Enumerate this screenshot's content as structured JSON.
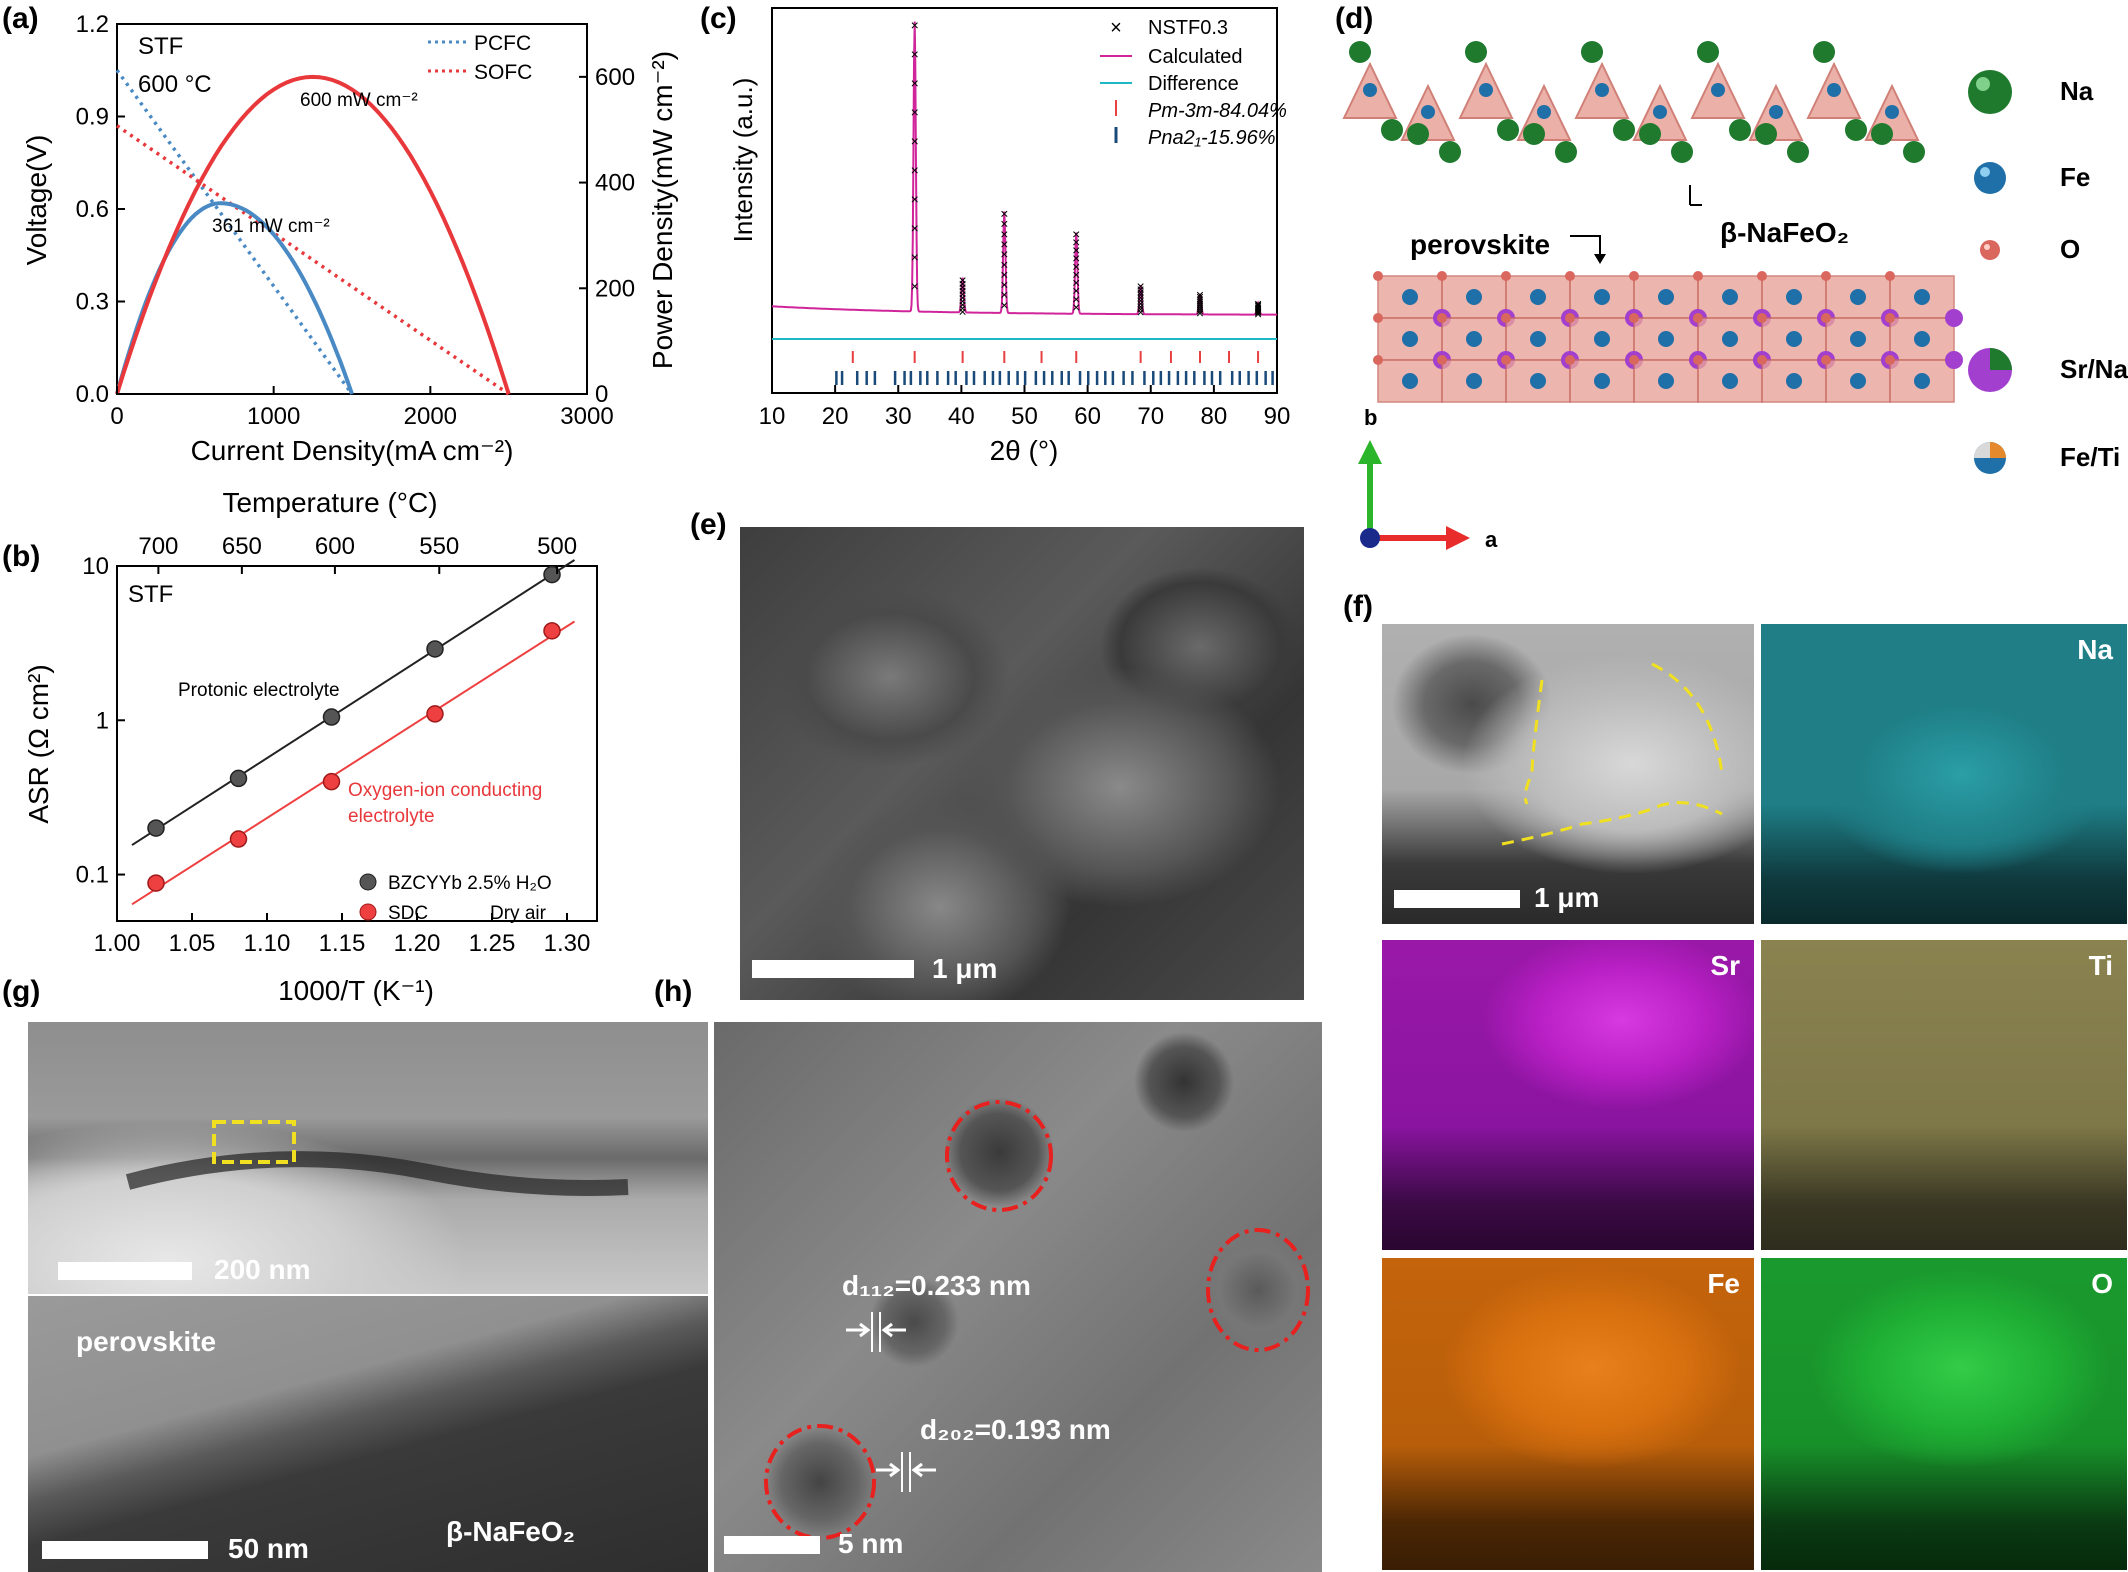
{
  "panels": {
    "a": {
      "label": "(a)",
      "material": "STF",
      "temperature": "600 °C",
      "peak_pcfc": "361 mW cm⁻²",
      "peak_sofc": "600 mW cm⁻²",
      "xlabel": "Current Density(mA cm⁻²)",
      "ylabel_left": "Voltage(V)",
      "ylabel_right": "Power Density(mW cm⁻²)",
      "legend": [
        "PCFC",
        "SOFC"
      ],
      "colors": {
        "pcfc": "#4a8ac4",
        "sofc": "#e8383b"
      }
    },
    "b": {
      "label": "(b)",
      "material": "STF",
      "top_axis_label": "Temperature (°C)",
      "top_ticks": [
        "700",
        "650",
        "600",
        "550",
        "500"
      ],
      "xlabel": "1000/T (K⁻¹)",
      "ylabel": "ASR (Ω cm²)",
      "protonic_label": "Protonic electrolyte",
      "oxygen_label_1": "Oxygen-ion conducting",
      "oxygen_label_2": "electrolyte",
      "legend_1": "BZCYYb 2.5% H₂O",
      "legend_2a": "SDC",
      "legend_2b": "Dry air"
    },
    "c": {
      "label": "(c)",
      "xlabel": "2θ (°)",
      "ylabel": "Intensity (a.u.)",
      "legend": [
        "NSTF0.3",
        "Calculated",
        "Difference",
        "Pm-3m-84.04%",
        "Pna2₁-15.96%"
      ]
    },
    "d": {
      "label": "(d)",
      "phase_top": "β-NaFeO₂",
      "phase_bottom": "perovskite",
      "axis_b": "b",
      "axis_a": "a",
      "legend": [
        {
          "name": "Na",
          "color": "#1f7a2e"
        },
        {
          "name": "Fe",
          "color": "#1f6fa8"
        },
        {
          "name": "O",
          "color": "#d9675e"
        },
        {
          "name": "Sr/Na",
          "color": "#a23fcf"
        },
        {
          "name": "Fe/Ti",
          "color": "#e58a2c"
        }
      ]
    },
    "e": {
      "label": "(e)",
      "scale": "1 μm"
    },
    "f": {
      "label": "(f)",
      "scale": "1 μm",
      "maps": [
        {
          "name": "Na",
          "color": "#1f7e86"
        },
        {
          "name": "Sr",
          "color": "#b81fc4"
        },
        {
          "name": "Ti",
          "color": "#8a8350"
        },
        {
          "name": "Fe",
          "color": "#d8700f"
        },
        {
          "name": "O",
          "color": "#1fb035"
        }
      ]
    },
    "g": {
      "label": "(g)",
      "scale_top": "200 nm",
      "scale_bottom": "50 nm",
      "perovskite": "perovskite",
      "nafeo2": "β-NaFeO₂"
    },
    "h": {
      "label": "(h)",
      "scale": "5 nm",
      "d112": "d₁₁₂=0.233 nm",
      "d202": "d₂₀₂=0.193 nm"
    }
  },
  "chart_data": [
    {
      "type": "line",
      "panel": "a",
      "xlim": [
        0,
        3000
      ],
      "ylim_left": [
        0,
        1.2
      ],
      "ylim_right": [
        0,
        700
      ],
      "x_ticks": [
        0,
        1000,
        2000,
        3000
      ],
      "y_left_ticks": [
        0.0,
        0.3,
        0.6,
        0.9,
        1.2
      ],
      "y_right_ticks": [
        0,
        200,
        400,
        600
      ],
      "series": [
        {
          "name": "PCFC",
          "axis": "left",
          "style": "dotted",
          "x": [
            0,
            1500
          ],
          "y": [
            1.05,
            0.0
          ]
        },
        {
          "name": "SOFC",
          "axis": "left",
          "style": "dotted",
          "x": [
            0,
            2500
          ],
          "y": [
            0.87,
            0.0
          ]
        },
        {
          "name": "PCFC",
          "axis": "right",
          "style": "solid",
          "x": [
            0,
            200,
            400,
            660,
            900,
            1200,
            1400,
            1500
          ],
          "y": [
            0,
            150,
            280,
            361,
            320,
            180,
            60,
            0
          ]
        },
        {
          "name": "SOFC",
          "axis": "right",
          "style": "solid",
          "x": [
            0,
            300,
            600,
            900,
            1250,
            1600,
            1900,
            2200,
            2500
          ],
          "y": [
            0,
            230,
            410,
            530,
            600,
            560,
            440,
            250,
            0
          ]
        }
      ]
    },
    {
      "type": "scatter",
      "panel": "b",
      "xlim": [
        1.0,
        1.32
      ],
      "ylim_log": [
        0.05,
        10
      ],
      "x_ticks": [
        1.0,
        1.05,
        1.1,
        1.15,
        1.2,
        1.25,
        1.3
      ],
      "y_ticks": [
        "0.1",
        "1",
        "10"
      ],
      "series": [
        {
          "name": "BZCYYb 2.5% H₂O",
          "x": [
            1.026,
            1.081,
            1.143,
            1.212,
            1.29
          ],
          "y": [
            0.2,
            0.42,
            1.05,
            2.9,
            8.8
          ]
        },
        {
          "name": "SDC",
          "x": [
            1.026,
            1.081,
            1.143,
            1.212,
            1.29
          ],
          "y": [
            0.088,
            0.17,
            0.4,
            1.1,
            3.8
          ]
        }
      ]
    },
    {
      "type": "line",
      "panel": "c",
      "xlim": [
        10,
        90
      ],
      "x_ticks": [
        10,
        20,
        30,
        40,
        50,
        60,
        70,
        80,
        90
      ],
      "peaks": [
        {
          "x": 32.6,
          "y": 1.0
        },
        {
          "x": 40.2,
          "y": 0.12
        },
        {
          "x": 46.8,
          "y": 0.35
        },
        {
          "x": 58.2,
          "y": 0.28
        },
        {
          "x": 68.4,
          "y": 0.1
        },
        {
          "x": 77.8,
          "y": 0.07
        },
        {
          "x": 87.0,
          "y": 0.04
        }
      ],
      "pm3m_ticks": [
        22.8,
        32.6,
        40.2,
        46.8,
        52.7,
        58.2,
        68.4,
        73.2,
        77.8,
        82.4,
        87.0
      ],
      "pna21_ticks": [
        20.2,
        21.1,
        23.5,
        25.0,
        26.3,
        29.5,
        31.0,
        32.0,
        33.5,
        34.6,
        36.2,
        37.9,
        39.1,
        40.8,
        42.0,
        43.7,
        45.0,
        46.1,
        47.5,
        48.9,
        50.1,
        51.8,
        53.1,
        54.4,
        55.9,
        57.0,
        58.8,
        60.1,
        61.5,
        62.8,
        64.0,
        65.7,
        67.1,
        69.0,
        70.4,
        71.6,
        72.9,
        74.3,
        75.6,
        76.9,
        78.5,
        79.7,
        81.0,
        82.9,
        84.1,
        85.5,
        86.8,
        88.2,
        89.3
      ]
    }
  ]
}
